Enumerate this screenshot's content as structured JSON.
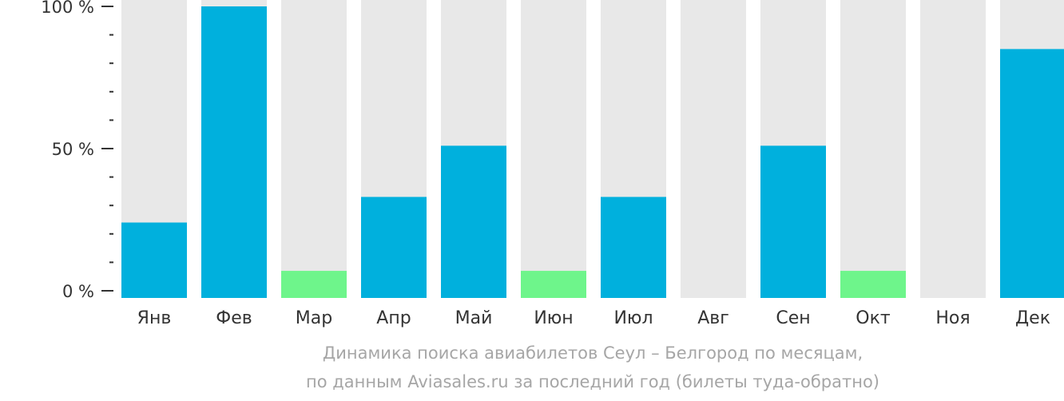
{
  "chart_data": {
    "type": "bar",
    "categories": [
      "Янв",
      "Фев",
      "Мар",
      "Апр",
      "Май",
      "Июн",
      "Июл",
      "Авг",
      "Сен",
      "Окт",
      "Ноя",
      "Дек"
    ],
    "values": [
      24,
      100,
      7,
      33,
      51,
      7,
      33,
      0,
      51,
      7,
      0,
      85
    ],
    "ylim": [
      0,
      100
    ],
    "yticks": [
      {
        "value": 0,
        "label": "0 %"
      },
      {
        "value": 50,
        "label": "50 %"
      },
      {
        "value": 100,
        "label": "100 %"
      }
    ],
    "minor_tick_step": 10,
    "low_threshold": 10,
    "colors": {
      "bar": "#00b0dd",
      "bar_low": "#6ef58b",
      "track": "#e8e8e8",
      "text": "#333333",
      "axis": "#333333"
    }
  },
  "caption": {
    "line1": "Динамика поиска авиабилетов Сеул – Белгород по месяцам,",
    "line2": "по данным Aviasales.ru за последний год (билеты туда-обратно)"
  }
}
